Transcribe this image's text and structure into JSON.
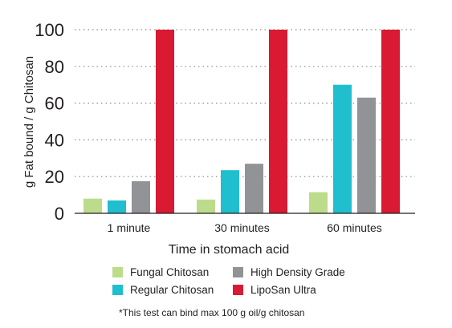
{
  "chart_data": {
    "type": "bar",
    "categories": [
      "1 minute",
      "30 minutes",
      "60 minutes"
    ],
    "series": [
      {
        "name": "Fungal Chitosan",
        "color": "#bcdc8c",
        "values": [
          8,
          7.5,
          11.5
        ]
      },
      {
        "name": "Regular Chitosan",
        "color": "#1fbfcf",
        "values": [
          7,
          23.5,
          70
        ]
      },
      {
        "name": "High Density Grade",
        "color": "#929396",
        "values": [
          17.5,
          27,
          63
        ]
      },
      {
        "name": "LipoSan Ultra",
        "color": "#da1a32",
        "values": [
          100,
          100,
          100
        ]
      }
    ],
    "xlabel": "Time in stomach acid",
    "ylabel": "g Fat bound / g Chitosan",
    "ylim": [
      0,
      100
    ],
    "yticks": [
      0,
      20,
      40,
      60,
      80,
      100
    ],
    "grid": true,
    "legend_position": "bottom",
    "legend_order": [
      "Fungal Chitosan",
      "High Density Grade",
      "Regular Chitosan",
      "LipoSan Ultra"
    ]
  },
  "footnote": "*This test can bind max 100 g oil/g chitosan"
}
